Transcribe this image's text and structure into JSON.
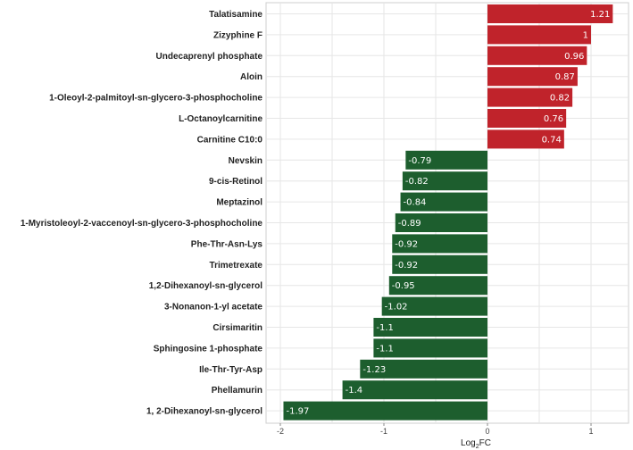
{
  "chart_data": {
    "type": "bar",
    "orientation": "horizontal",
    "title": "",
    "xlabel_main": "Log",
    "xlabel_sub": "2",
    "xlabel_tail": "FC",
    "ylabel": "",
    "xlim": [
      -2.2,
      1.4
    ],
    "xticks": [
      -2,
      -1,
      0,
      1
    ],
    "grid": true,
    "colors": {
      "up": "#c0232b",
      "down": "#1d5e2e"
    },
    "categories": [
      "Talatisamine",
      "Zizyphine F",
      "Undecaprenyl phosphate",
      "Aloin",
      "1-Oleoyl-2-palmitoyl-sn-glycero-3-phosphocholine",
      "L-Octanoylcarnitine",
      "Carnitine C10:0",
      "Nevskin",
      "9-cis-Retinol",
      "Meptazinol",
      "1-Myristoleoyl-2-vaccenoyl-sn-glycero-3-phosphocholine",
      "Phe-Thr-Asn-Lys",
      "Trimetrexate",
      "1,2-Dihexanoyl-sn-glycerol",
      "3-Nonanon-1-yl acetate",
      "Cirsimaritin",
      "Sphingosine 1-phosphate",
      "Ile-Thr-Tyr-Asp",
      "Phellamurin",
      "1, 2-Dihexanoyl-sn-glycerol"
    ],
    "values": [
      1.21,
      1,
      0.96,
      0.87,
      0.82,
      0.76,
      0.74,
      -0.79,
      -0.82,
      -0.84,
      -0.89,
      -0.92,
      -0.92,
      -0.95,
      -1.02,
      -1.1,
      -1.1,
      -1.23,
      -1.4,
      -1.97
    ],
    "value_labels": [
      "1.21",
      "1",
      "0.96",
      "0.87",
      "0.82",
      "0.76",
      "0.74",
      "-0.79",
      "-0.82",
      "-0.84",
      "-0.89",
      "-0.92",
      "-0.92",
      "-0.95",
      "-1.02",
      "-1.1",
      "-1.1",
      "-1.23",
      "-1.4",
      "-1.97"
    ]
  }
}
